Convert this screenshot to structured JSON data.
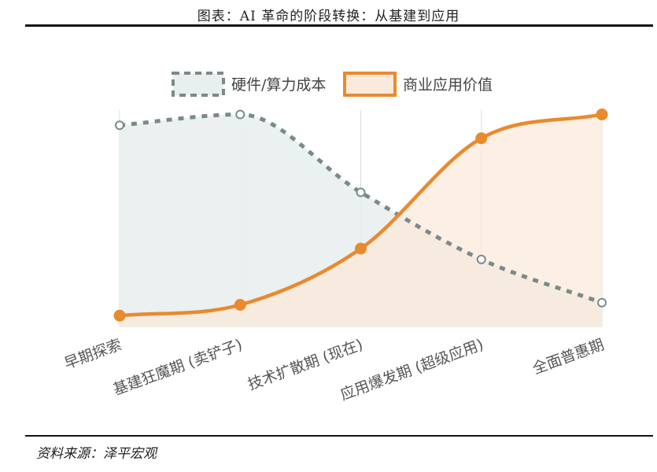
{
  "title": "图表：AI 革命的阶段转换：从基建到应用",
  "source": "资料来源：泽平宏观",
  "chart_data": {
    "type": "line",
    "categories": [
      "早期探索",
      "基建狂魔期 (卖铲子)",
      "技术扩散期 (现在)",
      "应用爆发期 (超级应用)",
      "全面普惠期"
    ],
    "ylim": [
      0,
      100
    ],
    "grid": true,
    "legend_position": "top",
    "series": [
      {
        "name": "硬件/算力成本",
        "style": "dashed",
        "color": "#7a8a8a",
        "fill": "#e9eeee",
        "values": [
          93,
          98,
          62,
          31,
          11
        ]
      },
      {
        "name": "商业应用价值",
        "style": "solid",
        "color": "#e98a2e",
        "fill": "#fbeadb",
        "values": [
          5,
          10,
          36,
          87,
          98
        ]
      }
    ]
  }
}
